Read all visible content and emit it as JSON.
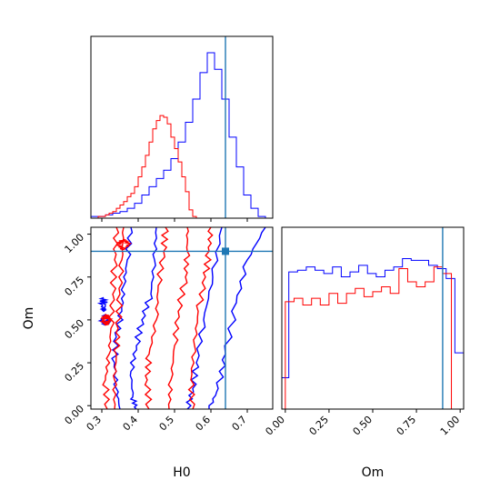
{
  "colors": {
    "blue": "#0000ff",
    "red": "#ff0000",
    "truth": "#1f77b4",
    "axes": "#000000"
  },
  "chart_data": {
    "type": "corner",
    "parameters": [
      "H0",
      "Om"
    ],
    "truth": {
      "H0": 0.64,
      "Om": 0.9
    },
    "axes": {
      "hist_H0": {
        "xlim": [
          0.27,
          0.77
        ],
        "ylim": [
          0,
          1.0
        ],
        "title": "",
        "xlabel": "",
        "ylabel": "",
        "series": [
          {
            "color": "#0000ff",
            "bins": [
              0.27,
              0.29,
              0.31,
              0.33,
              0.35,
              0.37,
              0.39,
              0.41,
              0.43,
              0.45,
              0.47,
              0.49,
              0.51,
              0.53,
              0.55,
              0.57,
              0.59,
              0.61,
              0.63,
              0.65,
              0.67,
              0.69,
              0.71,
              0.73,
              0.75,
              0.77
            ],
            "values": [
              0.01,
              0.01,
              0.02,
              0.03,
              0.04,
              0.06,
              0.09,
              0.14,
              0.19,
              0.24,
              0.29,
              0.36,
              0.46,
              0.58,
              0.72,
              0.88,
              1.0,
              0.9,
              0.72,
              0.49,
              0.31,
              0.14,
              0.06,
              0.01,
              0.0
            ]
          },
          {
            "color": "#ff0000",
            "bins": [
              0.27,
              0.28,
              0.29,
              0.3,
              0.31,
              0.32,
              0.33,
              0.34,
              0.35,
              0.36,
              0.37,
              0.38,
              0.39,
              0.4,
              0.41,
              0.42,
              0.43,
              0.44,
              0.45,
              0.46,
              0.47,
              0.48,
              0.49,
              0.5,
              0.51,
              0.52,
              0.53,
              0.54,
              0.55,
              0.56,
              0.57
            ],
            "values": [
              0.0,
              0.0,
              0.01,
              0.01,
              0.02,
              0.03,
              0.04,
              0.06,
              0.08,
              0.1,
              0.13,
              0.15,
              0.19,
              0.25,
              0.31,
              0.38,
              0.46,
              0.54,
              0.59,
              0.62,
              0.61,
              0.57,
              0.49,
              0.42,
              0.34,
              0.25,
              0.16,
              0.05,
              0.01,
              0.0
            ]
          }
        ]
      },
      "hist_Om": {
        "xlim": [
          -0.02,
          1.02
        ],
        "ylim": [
          0,
          1.1
        ],
        "xlabel": "Om",
        "xticks": [
          "0.00",
          "0.25",
          "0.50",
          "0.75",
          "1.00"
        ],
        "series": [
          {
            "color": "#0000ff",
            "bins": [
              -0.02,
              0.02,
              0.07,
              0.12,
              0.17,
              0.22,
              0.27,
              0.32,
              0.37,
              0.42,
              0.47,
              0.52,
              0.57,
              0.62,
              0.67,
              0.72,
              0.77,
              0.82,
              0.87,
              0.92,
              0.97,
              1.02
            ],
            "values": [
              0.19,
              0.83,
              0.84,
              0.86,
              0.84,
              0.82,
              0.86,
              0.8,
              0.83,
              0.87,
              0.82,
              0.8,
              0.84,
              0.86,
              0.91,
              0.9,
              0.9,
              0.87,
              0.85,
              0.79,
              0.34
            ]
          },
          {
            "color": "#ff0000",
            "bins": [
              -0.02,
              0.0,
              0.05,
              0.1,
              0.15,
              0.2,
              0.25,
              0.3,
              0.35,
              0.4,
              0.45,
              0.5,
              0.55,
              0.6,
              0.65,
              0.7,
              0.75,
              0.8,
              0.85,
              0.9,
              0.95,
              1.0
            ],
            "values": [
              0.0,
              0.65,
              0.67,
              0.63,
              0.67,
              0.63,
              0.7,
              0.64,
              0.7,
              0.73,
              0.68,
              0.71,
              0.74,
              0.7,
              0.85,
              0.77,
              0.74,
              0.77,
              0.86,
              0.82,
              0.0
            ]
          }
        ]
      },
      "contour_H0_Om": {
        "xlim": [
          0.27,
          0.77
        ],
        "ylim": [
          -0.02,
          1.04
        ],
        "xlabel": "H0",
        "ylabel": "Om",
        "xticks": [
          "0.3",
          "0.4",
          "0.5",
          "0.6",
          "0.7"
        ],
        "yticks": [
          "0.00",
          "0.25",
          "0.50",
          "0.75",
          "1.00"
        ],
        "marker": {
          "x": 0.64,
          "y": 0.9
        },
        "contours": [
          {
            "color": "#0000ff",
            "level": "outer",
            "points": [
              [
                0.595,
                -0.02
              ],
              [
                0.62,
                0.1
              ],
              [
                0.64,
                0.3
              ],
              [
                0.67,
                0.6
              ],
              [
                0.7,
                0.85
              ],
              [
                0.75,
                1.04
              ]
            ]
          },
          {
            "color": "#0000ff",
            "level": "outer",
            "points": [
              [
                0.38,
                1.04
              ],
              [
                0.37,
                0.85
              ],
              [
                0.36,
                0.7
              ],
              [
                0.355,
                0.55
              ],
              [
                0.34,
                0.4
              ],
              [
                0.335,
                0.25
              ],
              [
                0.34,
                0.1
              ],
              [
                0.35,
                -0.02
              ]
            ]
          },
          {
            "color": "#0000ff",
            "level": "inner",
            "points": [
              [
                0.535,
                -0.02
              ],
              [
                0.55,
                0.1
              ],
              [
                0.56,
                0.25
              ],
              [
                0.58,
                0.5
              ],
              [
                0.605,
                0.75
              ],
              [
                0.63,
                1.04
              ]
            ]
          },
          {
            "color": "#0000ff",
            "level": "inner",
            "points": [
              [
                0.45,
                1.04
              ],
              [
                0.445,
                0.85
              ],
              [
                0.435,
                0.65
              ],
              [
                0.41,
                0.5
              ],
              [
                0.395,
                0.35
              ],
              [
                0.38,
                0.2
              ],
              [
                0.385,
                0.05
              ],
              [
                0.395,
                -0.02
              ]
            ]
          },
          {
            "color": "#0000ff",
            "level": "island",
            "points": [
              [
                0.3,
                0.59
              ],
              [
                0.305,
                0.63
              ],
              [
                0.31,
                0.59
              ],
              [
                0.305,
                0.55
              ],
              [
                0.3,
                0.59
              ]
            ]
          },
          {
            "color": "#0000ff",
            "level": "island",
            "points": [
              [
                0.3,
                0.5
              ],
              [
                0.31,
                0.53
              ],
              [
                0.32,
                0.5
              ],
              [
                0.31,
                0.47
              ],
              [
                0.3,
                0.5
              ]
            ]
          },
          {
            "color": "#ff0000",
            "level": "outer",
            "points": [
              [
                0.55,
                -0.02
              ],
              [
                0.545,
                0.15
              ],
              [
                0.555,
                0.35
              ],
              [
                0.565,
                0.55
              ],
              [
                0.585,
                0.75
              ],
              [
                0.595,
                0.9
              ],
              [
                0.6,
                1.04
              ]
            ]
          },
          {
            "color": "#ff0000",
            "level": "outer",
            "points": [
              [
                0.34,
                1.04
              ],
              [
                0.335,
                0.85
              ],
              [
                0.33,
                0.65
              ],
              [
                0.325,
                0.45
              ],
              [
                0.32,
                0.3
              ],
              [
                0.31,
                0.15
              ],
              [
                0.315,
                -0.02
              ]
            ]
          },
          {
            "color": "#ff0000",
            "level": "inner",
            "points": [
              [
                0.485,
                -0.02
              ],
              [
                0.49,
                0.15
              ],
              [
                0.5,
                0.35
              ],
              [
                0.51,
                0.55
              ],
              [
                0.53,
                0.75
              ],
              [
                0.535,
                0.9
              ],
              [
                0.535,
                1.04
              ]
            ]
          },
          {
            "color": "#ff0000",
            "level": "inner",
            "points": [
              [
                0.43,
                -0.02
              ],
              [
                0.425,
                0.15
              ],
              [
                0.43,
                0.3
              ],
              [
                0.45,
                0.5
              ],
              [
                0.455,
                0.7
              ],
              [
                0.47,
                0.9
              ],
              [
                0.475,
                1.04
              ]
            ]
          },
          {
            "color": "#ff0000",
            "level": "inner",
            "points": [
              [
                0.36,
                1.04
              ],
              [
                0.355,
                0.85
              ],
              [
                0.35,
                0.65
              ],
              [
                0.345,
                0.45
              ],
              [
                0.34,
                0.3
              ],
              [
                0.335,
                0.15
              ],
              [
                0.335,
                -0.02
              ]
            ]
          },
          {
            "color": "#ff0000",
            "level": "island",
            "points": [
              [
                0.345,
                0.94
              ],
              [
                0.36,
                0.97
              ],
              [
                0.375,
                0.94
              ],
              [
                0.36,
                0.91
              ],
              [
                0.345,
                0.94
              ]
            ]
          },
          {
            "color": "#ff0000",
            "level": "island",
            "points": [
              [
                0.3,
                0.5
              ],
              [
                0.31,
                0.53
              ],
              [
                0.32,
                0.5
              ],
              [
                0.31,
                0.47
              ],
              [
                0.3,
                0.5
              ]
            ]
          }
        ]
      }
    }
  }
}
